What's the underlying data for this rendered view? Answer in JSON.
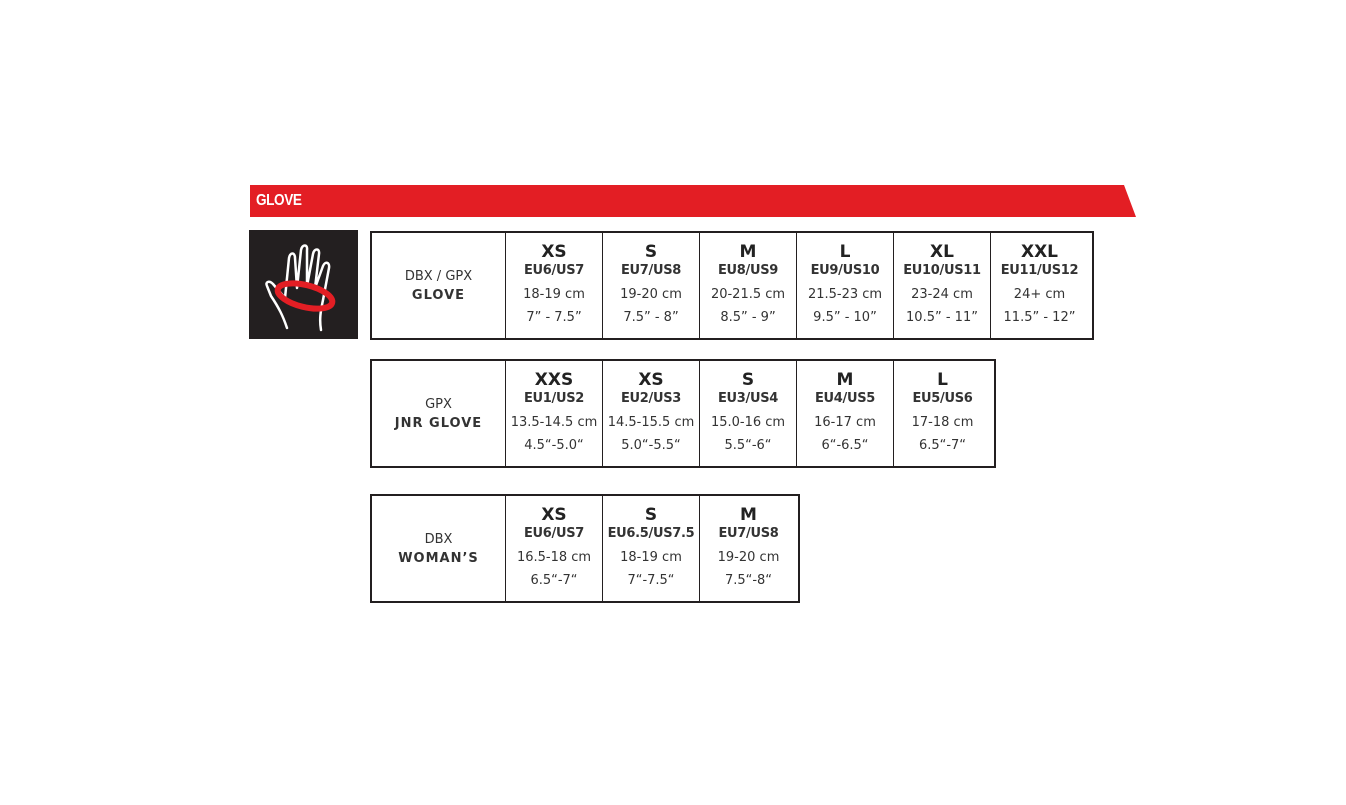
{
  "header": {
    "title": "GLOVE",
    "color": "#e31e24"
  },
  "icon": {
    "name": "hand-measure-icon",
    "bg": "#231f20",
    "accent": "#e31e24"
  },
  "tables": [
    {
      "line1": "DBX / GPX",
      "line2": "GLOVE",
      "sizes": [
        {
          "size": "XS",
          "eu_us": "EU6/US7",
          "cm": "18-19 cm",
          "inch": "7” - 7.5”"
        },
        {
          "size": "S",
          "eu_us": "EU7/US8",
          "cm": "19-20 cm",
          "inch": "7.5” - 8”"
        },
        {
          "size": "M",
          "eu_us": "EU8/US9",
          "cm": "20-21.5 cm",
          "inch": "8.5” - 9”"
        },
        {
          "size": "L",
          "eu_us": "EU9/US10",
          "cm": "21.5-23 cm",
          "inch": "9.5” - 10”"
        },
        {
          "size": "XL",
          "eu_us": "EU10/US11",
          "cm": "23-24 cm",
          "inch": "10.5” - 11”"
        },
        {
          "size": "XXL",
          "eu_us": "EU11/US12",
          "cm": "24+ cm",
          "inch": "11.5” - 12”"
        }
      ]
    },
    {
      "line1": "GPX",
      "line2": "JNR GLOVE",
      "sizes": [
        {
          "size": "XXS",
          "eu_us": "EU1/US2",
          "cm": "13.5-14.5 cm",
          "inch": "4.5“-5.0“"
        },
        {
          "size": "XS",
          "eu_us": "EU2/US3",
          "cm": "14.5-15.5 cm",
          "inch": "5.0“-5.5“"
        },
        {
          "size": "S",
          "eu_us": "EU3/US4",
          "cm": "15.0-16 cm",
          "inch": "5.5“-6“"
        },
        {
          "size": "M",
          "eu_us": "EU4/US5",
          "cm": "16-17 cm",
          "inch": "6“-6.5“"
        },
        {
          "size": "L",
          "eu_us": "EU5/US6",
          "cm": "17-18 cm",
          "inch": "6.5“-7“"
        }
      ]
    },
    {
      "line1": "DBX",
      "line2": "WOMAN’S",
      "sizes": [
        {
          "size": "XS",
          "eu_us": "EU6/US7",
          "cm": "16.5-18 cm",
          "inch": "6.5“-7“"
        },
        {
          "size": "S",
          "eu_us": "EU6.5/US7.5",
          "cm": "18-19 cm",
          "inch": "7“-7.5“"
        },
        {
          "size": "M",
          "eu_us": "EU7/US8",
          "cm": "19-20 cm",
          "inch": "7.5“-8“"
        }
      ]
    }
  ]
}
